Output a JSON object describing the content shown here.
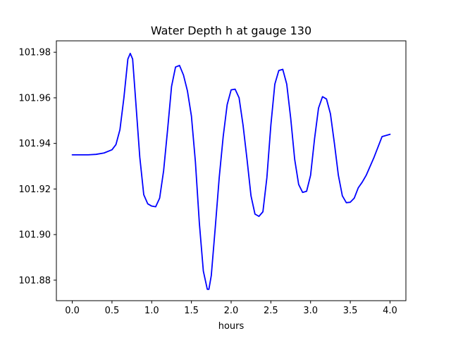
{
  "chart_data": {
    "type": "line",
    "title": "Water Depth h at gauge 130",
    "xlabel": "hours",
    "ylabel": "",
    "xlim": [
      -0.2,
      4.2
    ],
    "ylim": [
      101.871,
      101.985
    ],
    "grid": false,
    "x_ticks": [
      0.0,
      0.5,
      1.0,
      1.5,
      2.0,
      2.5,
      3.0,
      3.5,
      4.0
    ],
    "x_tick_labels": [
      "0.0",
      "0.5",
      "1.0",
      "1.5",
      "2.0",
      "2.5",
      "3.0",
      "3.5",
      "4.0"
    ],
    "y_ticks": [
      101.88,
      101.9,
      101.92,
      101.94,
      101.96,
      101.98
    ],
    "y_tick_labels": [
      "101.88",
      "101.90",
      "101.92",
      "101.94",
      "101.96",
      "101.98"
    ],
    "series": [
      {
        "color": "#0000ff",
        "x": [
          0.0,
          0.1,
          0.2,
          0.3,
          0.4,
          0.5,
          0.55,
          0.6,
          0.65,
          0.7,
          0.73,
          0.76,
          0.8,
          0.85,
          0.9,
          0.95,
          1.0,
          1.05,
          1.1,
          1.15,
          1.2,
          1.25,
          1.3,
          1.35,
          1.4,
          1.45,
          1.5,
          1.55,
          1.6,
          1.65,
          1.7,
          1.72,
          1.75,
          1.8,
          1.85,
          1.9,
          1.95,
          2.0,
          2.05,
          2.1,
          2.15,
          2.2,
          2.25,
          2.3,
          2.35,
          2.4,
          2.45,
          2.5,
          2.55,
          2.6,
          2.65,
          2.7,
          2.75,
          2.8,
          2.85,
          2.9,
          2.95,
          3.0,
          3.05,
          3.1,
          3.15,
          3.2,
          3.25,
          3.3,
          3.35,
          3.4,
          3.45,
          3.5,
          3.55,
          3.6,
          3.65,
          3.7,
          3.8,
          3.9,
          4.0
        ],
        "y": [
          101.935,
          101.935,
          101.935,
          101.9352,
          101.9358,
          101.9372,
          101.9395,
          101.946,
          101.96,
          101.977,
          101.9795,
          101.977,
          101.958,
          101.934,
          101.9175,
          101.9135,
          101.9125,
          101.9122,
          101.916,
          101.928,
          101.946,
          101.965,
          101.9735,
          101.9742,
          101.97,
          101.963,
          101.952,
          101.932,
          101.905,
          101.884,
          101.876,
          101.876,
          101.882,
          101.903,
          101.925,
          101.943,
          101.957,
          101.9635,
          101.9638,
          101.96,
          101.948,
          101.933,
          101.917,
          101.909,
          101.908,
          101.91,
          101.925,
          101.948,
          101.966,
          101.972,
          101.9725,
          101.966,
          101.951,
          101.933,
          101.922,
          101.9185,
          101.919,
          101.926,
          101.942,
          101.9555,
          101.9605,
          101.9595,
          101.953,
          101.94,
          101.926,
          101.917,
          101.914,
          101.9142,
          101.916,
          101.9205,
          101.923,
          101.926,
          101.934,
          101.943,
          101.944
        ]
      }
    ]
  }
}
